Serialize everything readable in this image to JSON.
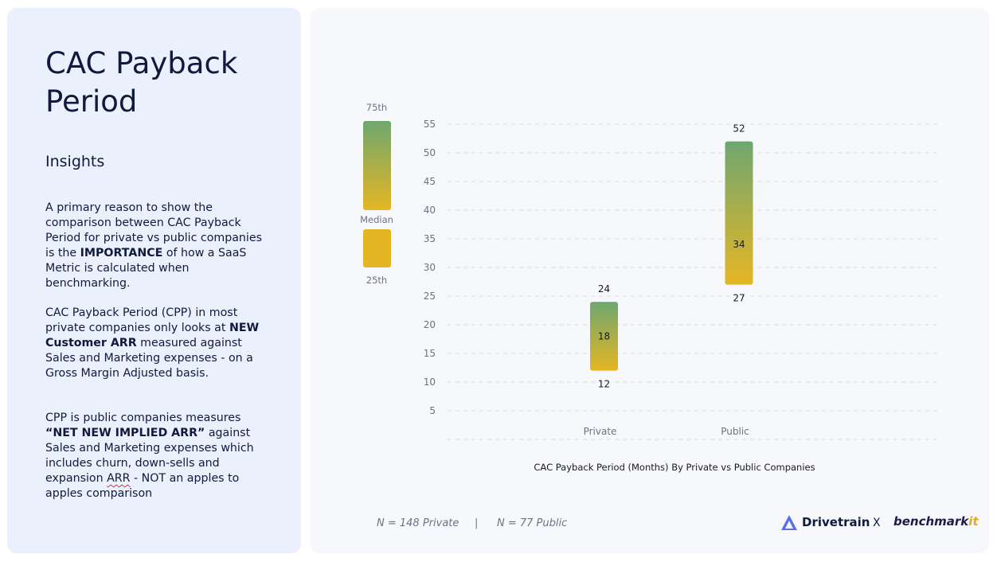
{
  "title": "CAC Payback Period",
  "insights": {
    "heading": "Insights",
    "p1": {
      "pre": "A primary reason to show the comparison between CAC Payback Period for private vs public companies is the ",
      "bold": "IMPORTANCE",
      "post": " of how a SaaS Metric is calculated when benchmarking."
    },
    "p2": {
      "pre": "CAC Payback Period (CPP) in most private companies only looks at ",
      "bold": "NEW Customer ARR",
      "post": " measured against Sales and Marketing expenses - on a Gross Margin Adjusted basis."
    },
    "p3": {
      "pre": "CPP is public companies measures ",
      "bold": "“NET NEW IMPLIED ARR”",
      "mid": " against Sales and Marketing expenses which includes churn, down-sells and expansion ",
      "squiggle": "ARR",
      "post": " - NOT an apples to apples comparison"
    }
  },
  "legend": {
    "top": "75th",
    "middle": "Median",
    "bottom": "25th"
  },
  "chart_data": {
    "type": "bar",
    "subtype": "range",
    "title": "CAC Payback Period (Months) By Private vs Public Companies",
    "categories": [
      "Private",
      "Public"
    ],
    "series": [
      {
        "name": "25th",
        "values": [
          12,
          27
        ]
      },
      {
        "name": "Median",
        "values": [
          18,
          34
        ]
      },
      {
        "name": "75th",
        "values": [
          24,
          52
        ]
      }
    ],
    "yticks": [
      5,
      10,
      15,
      20,
      25,
      30,
      35,
      40,
      45,
      50,
      55
    ],
    "ylim": [
      0,
      55
    ],
    "grid": true,
    "colors": {
      "top": "#6fa76f",
      "bottom": "#e5b624"
    }
  },
  "footer": {
    "private_n": "N = 148 Private",
    "separator": "|",
    "public_n": "N = 77 Public"
  },
  "brands": {
    "drivetrain": "Drivetrain",
    "x": "X",
    "benchmark": "benchmark",
    "benchmark_it": "it"
  }
}
